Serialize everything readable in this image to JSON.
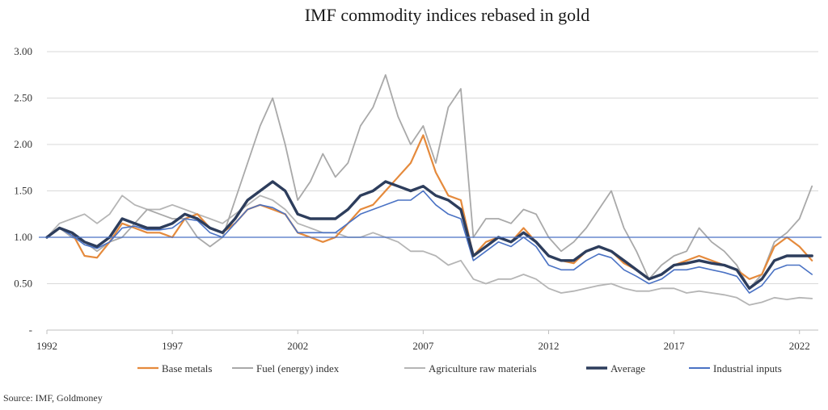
{
  "chart_data": {
    "type": "line",
    "title": "IMF commodity indices rebased in gold",
    "source": "Source: IMF, Goldmoney",
    "xlabel": "",
    "ylabel": "",
    "xlim": [
      1992.0,
      2022.75
    ],
    "ylim": [
      0,
      3.0
    ],
    "yticks": [
      {
        "value": 0,
        "label": "-"
      },
      {
        "value": 0.5,
        "label": "0.50"
      },
      {
        "value": 1.0,
        "label": "1.00"
      },
      {
        "value": 1.5,
        "label": "1.50"
      },
      {
        "value": 2.0,
        "label": "2.00"
      },
      {
        "value": 2.5,
        "label": "2.50"
      },
      {
        "value": 3.0,
        "label": "3.00"
      }
    ],
    "xticks": [
      {
        "value": 1992,
        "label": "1992"
      },
      {
        "value": 1997,
        "label": "1997"
      },
      {
        "value": 2002,
        "label": "2002"
      },
      {
        "value": 2007,
        "label": "2007"
      },
      {
        "value": 2012,
        "label": "2012"
      },
      {
        "value": 2017,
        "label": "2017"
      },
      {
        "value": 2022,
        "label": "2022"
      }
    ],
    "grid": "horizontal",
    "reference_line": 1.0,
    "legend_position": "bottom",
    "x": [
      1992.0,
      1992.5,
      1993.0,
      1993.5,
      1994.0,
      1994.5,
      1995.0,
      1995.5,
      1996.0,
      1996.5,
      1997.0,
      1997.5,
      1998.0,
      1998.5,
      1999.0,
      1999.5,
      2000.0,
      2000.5,
      2001.0,
      2001.5,
      2002.0,
      2002.5,
      2003.0,
      2003.5,
      2004.0,
      2004.5,
      2005.0,
      2005.5,
      2006.0,
      2006.5,
      2007.0,
      2007.5,
      2008.0,
      2008.5,
      2009.0,
      2009.5,
      2010.0,
      2010.5,
      2011.0,
      2011.5,
      2012.0,
      2012.5,
      2013.0,
      2013.5,
      2014.0,
      2014.5,
      2015.0,
      2015.5,
      2016.0,
      2016.5,
      2017.0,
      2017.5,
      2018.0,
      2018.5,
      2019.0,
      2019.5,
      2020.0,
      2020.5,
      2021.0,
      2021.5,
      2022.0,
      2022.5
    ],
    "series": [
      {
        "name": "Base metals",
        "color": "#e58a3c",
        "width": 2.2,
        "values": [
          1.0,
          1.1,
          1.05,
          0.8,
          0.78,
          0.95,
          1.15,
          1.1,
          1.05,
          1.05,
          1.0,
          1.2,
          1.25,
          1.1,
          1.05,
          1.15,
          1.3,
          1.35,
          1.3,
          1.25,
          1.05,
          1.0,
          0.95,
          1.0,
          1.15,
          1.3,
          1.35,
          1.5,
          1.65,
          1.8,
          2.1,
          1.7,
          1.45,
          1.4,
          0.8,
          0.95,
          1.0,
          0.95,
          1.1,
          0.95,
          0.8,
          0.75,
          0.72,
          0.85,
          0.9,
          0.85,
          0.72,
          0.65,
          0.55,
          0.6,
          0.7,
          0.75,
          0.8,
          0.75,
          0.7,
          0.65,
          0.55,
          0.6,
          0.9,
          1.0,
          0.9,
          0.75
        ]
      },
      {
        "name": "Fuel (energy) index",
        "color": "#a9a9a9",
        "width": 1.8,
        "values": [
          1.0,
          1.1,
          1.0,
          0.95,
          0.85,
          0.95,
          1.0,
          1.15,
          1.3,
          1.25,
          1.2,
          1.2,
          1.0,
          0.9,
          1.0,
          1.4,
          1.8,
          2.2,
          2.5,
          2.0,
          1.4,
          1.6,
          1.9,
          1.65,
          1.8,
          2.2,
          2.4,
          2.75,
          2.3,
          2.0,
          2.2,
          1.8,
          2.4,
          2.6,
          1.0,
          1.2,
          1.2,
          1.15,
          1.3,
          1.25,
          1.0,
          0.85,
          0.95,
          1.1,
          1.3,
          1.5,
          1.1,
          0.85,
          0.55,
          0.7,
          0.8,
          0.85,
          1.1,
          0.95,
          0.85,
          0.7,
          0.45,
          0.6,
          0.95,
          1.05,
          1.2,
          1.55
        ]
      },
      {
        "name": "Agriculture raw materials",
        "color": "#b5b5b5",
        "width": 1.8,
        "values": [
          1.0,
          1.15,
          1.2,
          1.25,
          1.15,
          1.25,
          1.45,
          1.35,
          1.3,
          1.3,
          1.35,
          1.3,
          1.25,
          1.2,
          1.15,
          1.25,
          1.35,
          1.45,
          1.4,
          1.3,
          1.15,
          1.1,
          1.05,
          1.05,
          1.0,
          1.0,
          1.05,
          1.0,
          0.95,
          0.85,
          0.85,
          0.8,
          0.7,
          0.75,
          0.55,
          0.5,
          0.55,
          0.55,
          0.6,
          0.55,
          0.45,
          0.4,
          0.42,
          0.45,
          0.48,
          0.5,
          0.45,
          0.42,
          0.42,
          0.45,
          0.45,
          0.4,
          0.42,
          0.4,
          0.38,
          0.35,
          0.27,
          0.3,
          0.35,
          0.33,
          0.35,
          0.34
        ]
      },
      {
        "name": "Average",
        "color": "#2d3d5c",
        "width": 3.4,
        "values": [
          1.0,
          1.1,
          1.05,
          0.95,
          0.9,
          1.0,
          1.2,
          1.15,
          1.1,
          1.1,
          1.15,
          1.25,
          1.2,
          1.1,
          1.05,
          1.2,
          1.4,
          1.5,
          1.6,
          1.5,
          1.25,
          1.2,
          1.2,
          1.2,
          1.3,
          1.45,
          1.5,
          1.6,
          1.55,
          1.5,
          1.55,
          1.45,
          1.4,
          1.3,
          0.8,
          0.9,
          1.0,
          0.95,
          1.05,
          0.95,
          0.8,
          0.75,
          0.75,
          0.85,
          0.9,
          0.85,
          0.75,
          0.65,
          0.55,
          0.6,
          0.7,
          0.72,
          0.75,
          0.72,
          0.7,
          0.65,
          0.45,
          0.55,
          0.75,
          0.8,
          0.8,
          0.8
        ]
      },
      {
        "name": "Industrial inputs",
        "color": "#4a72c4",
        "width": 1.6,
        "values": [
          1.0,
          1.1,
          1.02,
          0.92,
          0.88,
          0.95,
          1.1,
          1.12,
          1.08,
          1.08,
          1.1,
          1.2,
          1.18,
          1.05,
          1.0,
          1.15,
          1.3,
          1.35,
          1.32,
          1.25,
          1.05,
          1.05,
          1.05,
          1.05,
          1.15,
          1.25,
          1.3,
          1.35,
          1.4,
          1.4,
          1.5,
          1.35,
          1.25,
          1.2,
          0.75,
          0.85,
          0.95,
          0.9,
          1.0,
          0.9,
          0.7,
          0.65,
          0.65,
          0.75,
          0.82,
          0.78,
          0.65,
          0.58,
          0.5,
          0.55,
          0.65,
          0.65,
          0.68,
          0.65,
          0.62,
          0.58,
          0.4,
          0.48,
          0.65,
          0.7,
          0.7,
          0.6
        ]
      }
    ]
  }
}
